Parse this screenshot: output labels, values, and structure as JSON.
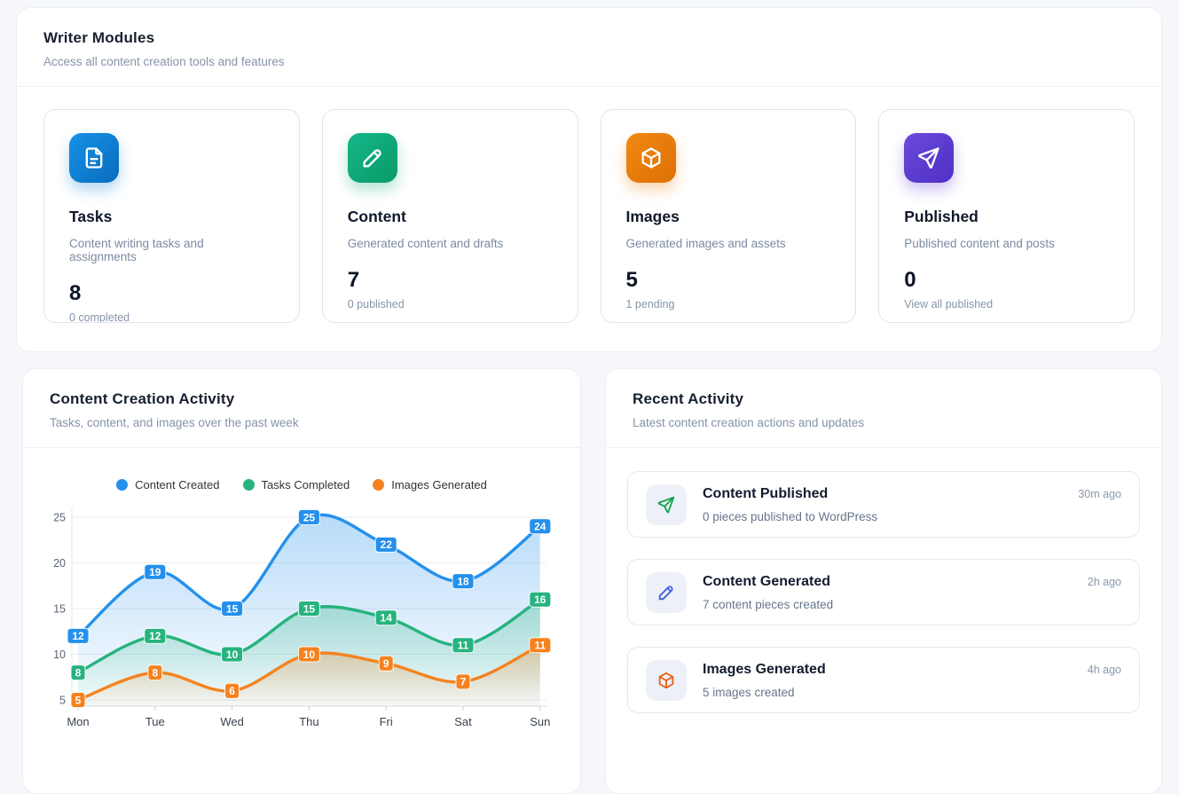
{
  "writer_modules": {
    "title": "Writer Modules",
    "subtitle": "Access all content creation tools and features",
    "cards": [
      {
        "title": "Tasks",
        "description": "Content writing tasks and assignments",
        "count": "8",
        "stat": "0 completed",
        "icon": "file-icon",
        "icon_from": "#1592e6",
        "icon_to": "#0a6cbd",
        "icon_shadow": "rgba(13,130,216,0.32)"
      },
      {
        "title": "Content",
        "description": "Generated content and drafts",
        "count": "7",
        "stat": "0 published",
        "icon": "pencil-icon",
        "icon_from": "#14b789",
        "icon_to": "#0a9a68",
        "icon_shadow": "rgba(16,170,120,0.32)"
      },
      {
        "title": "Images",
        "description": "Generated images and assets",
        "count": "5",
        "stat": "1 pending",
        "icon": "cube-icon",
        "icon_from": "#f18a12",
        "icon_to": "#dd6f04",
        "icon_shadow": "rgba(235,125,10,0.32)"
      },
      {
        "title": "Published",
        "description": "Published content and posts",
        "count": "0",
        "stat": "View all published",
        "icon": "send-icon",
        "icon_from": "#6a4bdb",
        "icon_to": "#4f2fc5",
        "icon_shadow": "rgba(95,60,210,0.32)"
      }
    ]
  },
  "activity_chart": {
    "title": "Content Creation Activity",
    "subtitle": "Tasks, content, and images over the past week"
  },
  "chart_data": {
    "type": "line",
    "categories": [
      "Mon",
      "Tue",
      "Wed",
      "Thu",
      "Fri",
      "Sat",
      "Sun"
    ],
    "series": [
      {
        "name": "Content Created",
        "color": "#2490ec",
        "values": [
          12,
          19,
          15,
          25,
          22,
          18,
          24
        ]
      },
      {
        "name": "Tasks Completed",
        "color": "#26b37e",
        "values": [
          8,
          12,
          10,
          15,
          14,
          11,
          16
        ]
      },
      {
        "name": "Images Generated",
        "color": "#f5821f",
        "values": [
          5,
          8,
          6,
          10,
          9,
          7,
          11
        ]
      }
    ],
    "yticks": [
      5,
      10,
      15,
      20,
      25
    ],
    "ylim": [
      4,
      26
    ],
    "grid": true,
    "smooth": true,
    "area": true,
    "point_labels": "value badges on every point",
    "legend_position": "top"
  },
  "recent_activity": {
    "title": "Recent Activity",
    "subtitle": "Latest content creation actions and updates",
    "items": [
      {
        "title": "Content Published",
        "description": "0 pieces published to WordPress",
        "time": "30m ago",
        "icon": "send-icon",
        "icon_color": "#17a34a",
        "tile_bg": "#edf1f7"
      },
      {
        "title": "Content Generated",
        "description": "7 content pieces created",
        "time": "2h ago",
        "icon": "pencil-icon",
        "icon_color": "#3b62e3",
        "tile_bg": "#edf1f7"
      },
      {
        "title": "Images Generated",
        "description": "5 images created",
        "time": "4h ago",
        "icon": "cube-icon",
        "icon_color": "#ec5f14",
        "tile_bg": "#edf1f7"
      }
    ]
  }
}
